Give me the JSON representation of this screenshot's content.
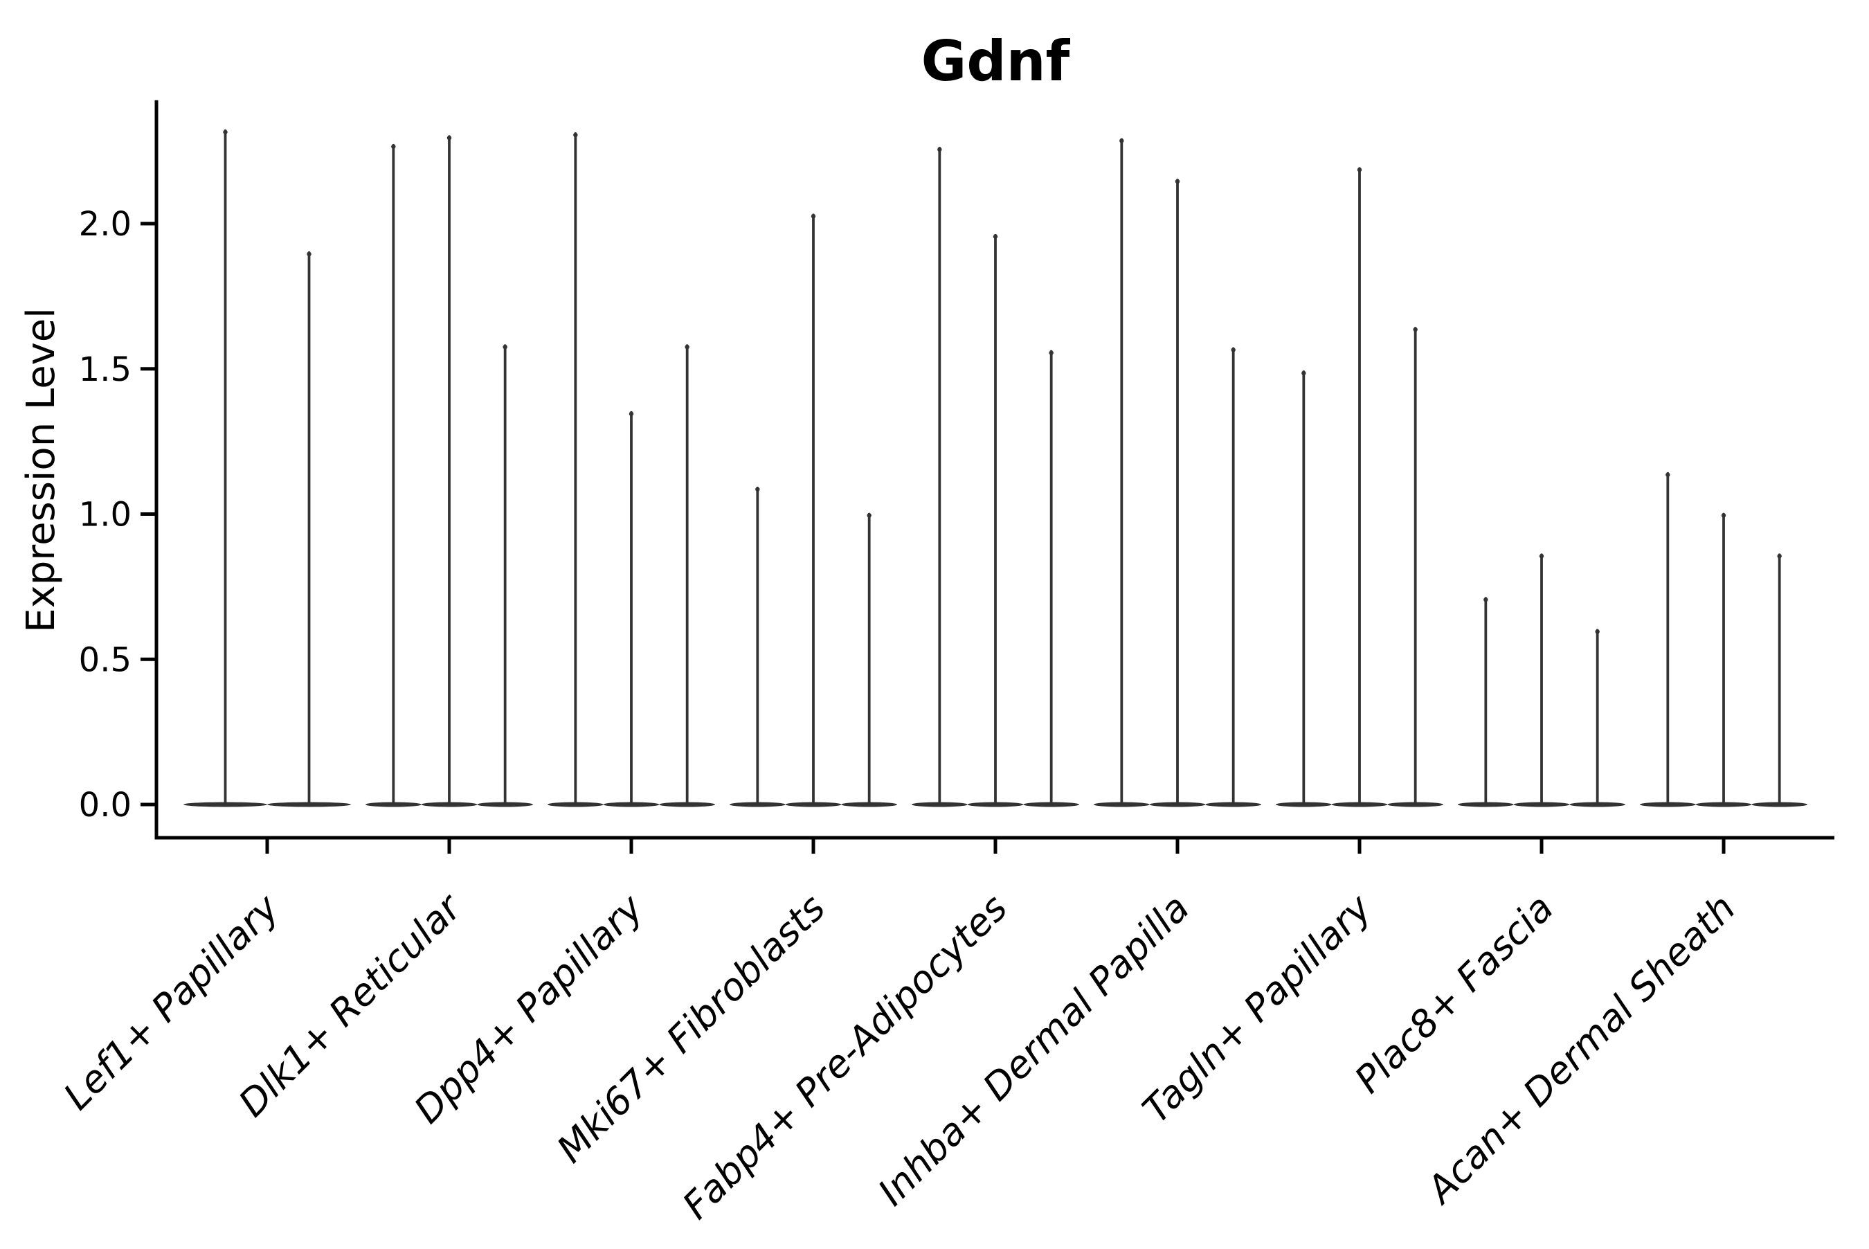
{
  "title": "Gdnf",
  "chart_data": {
    "type": "violin",
    "title": "Gdnf",
    "xlabel": "",
    "ylabel": "Expression Level",
    "ylim": [
      -0.114,
      2.425
    ],
    "yticks": [
      0.0,
      0.5,
      1.0,
      1.5,
      2.0
    ],
    "grid": false,
    "legend": false,
    "background_color": "#ffffff",
    "violin_color": "#333333",
    "axis_color": "#000000",
    "x_tick_label_rotation_deg": 45,
    "x_tick_label_style": "italic",
    "distribution_note": "Each violin is a needle shape: nearly all density lies at expression 0 (flat wide base on the zero line) with a thin spike rising to the maximum expression value listed.",
    "categories": [
      "Lef1+ Papillary",
      "Dlk1+ Reticular",
      "Dpp4+ Papillary",
      "Mki67+ Fibroblasts",
      "Fabp4+ Pre-Adipocytes",
      "Inhba+ Dermal Papilla",
      "Tagln+ Papillary",
      "Plac8+ Fascia",
      "Acan+ Dermal Sheath"
    ],
    "series": [
      {
        "category": "Lef1+ Papillary",
        "violin_max_values": [
          2.32,
          1.9
        ]
      },
      {
        "category": "Dlk1+ Reticular",
        "violin_max_values": [
          2.27,
          2.3,
          1.58
        ]
      },
      {
        "category": "Dpp4+ Papillary",
        "violin_max_values": [
          2.31,
          1.35,
          1.58
        ]
      },
      {
        "category": "Mki67+ Fibroblasts",
        "violin_max_values": [
          1.09,
          2.03,
          1.0
        ]
      },
      {
        "category": "Fabp4+ Pre-Adipocytes",
        "violin_max_values": [
          2.26,
          1.96,
          1.56
        ]
      },
      {
        "category": "Inhba+ Dermal Papilla",
        "violin_max_values": [
          2.29,
          2.15,
          1.57
        ]
      },
      {
        "category": "Tagln+ Papillary",
        "violin_max_values": [
          1.49,
          2.19,
          1.64
        ]
      },
      {
        "category": "Plac8+ Fascia",
        "violin_max_values": [
          0.71,
          0.86,
          0.6
        ]
      },
      {
        "category": "Acan+ Dermal Sheath",
        "violin_max_values": [
          1.14,
          1.0,
          0.86
        ]
      }
    ]
  }
}
